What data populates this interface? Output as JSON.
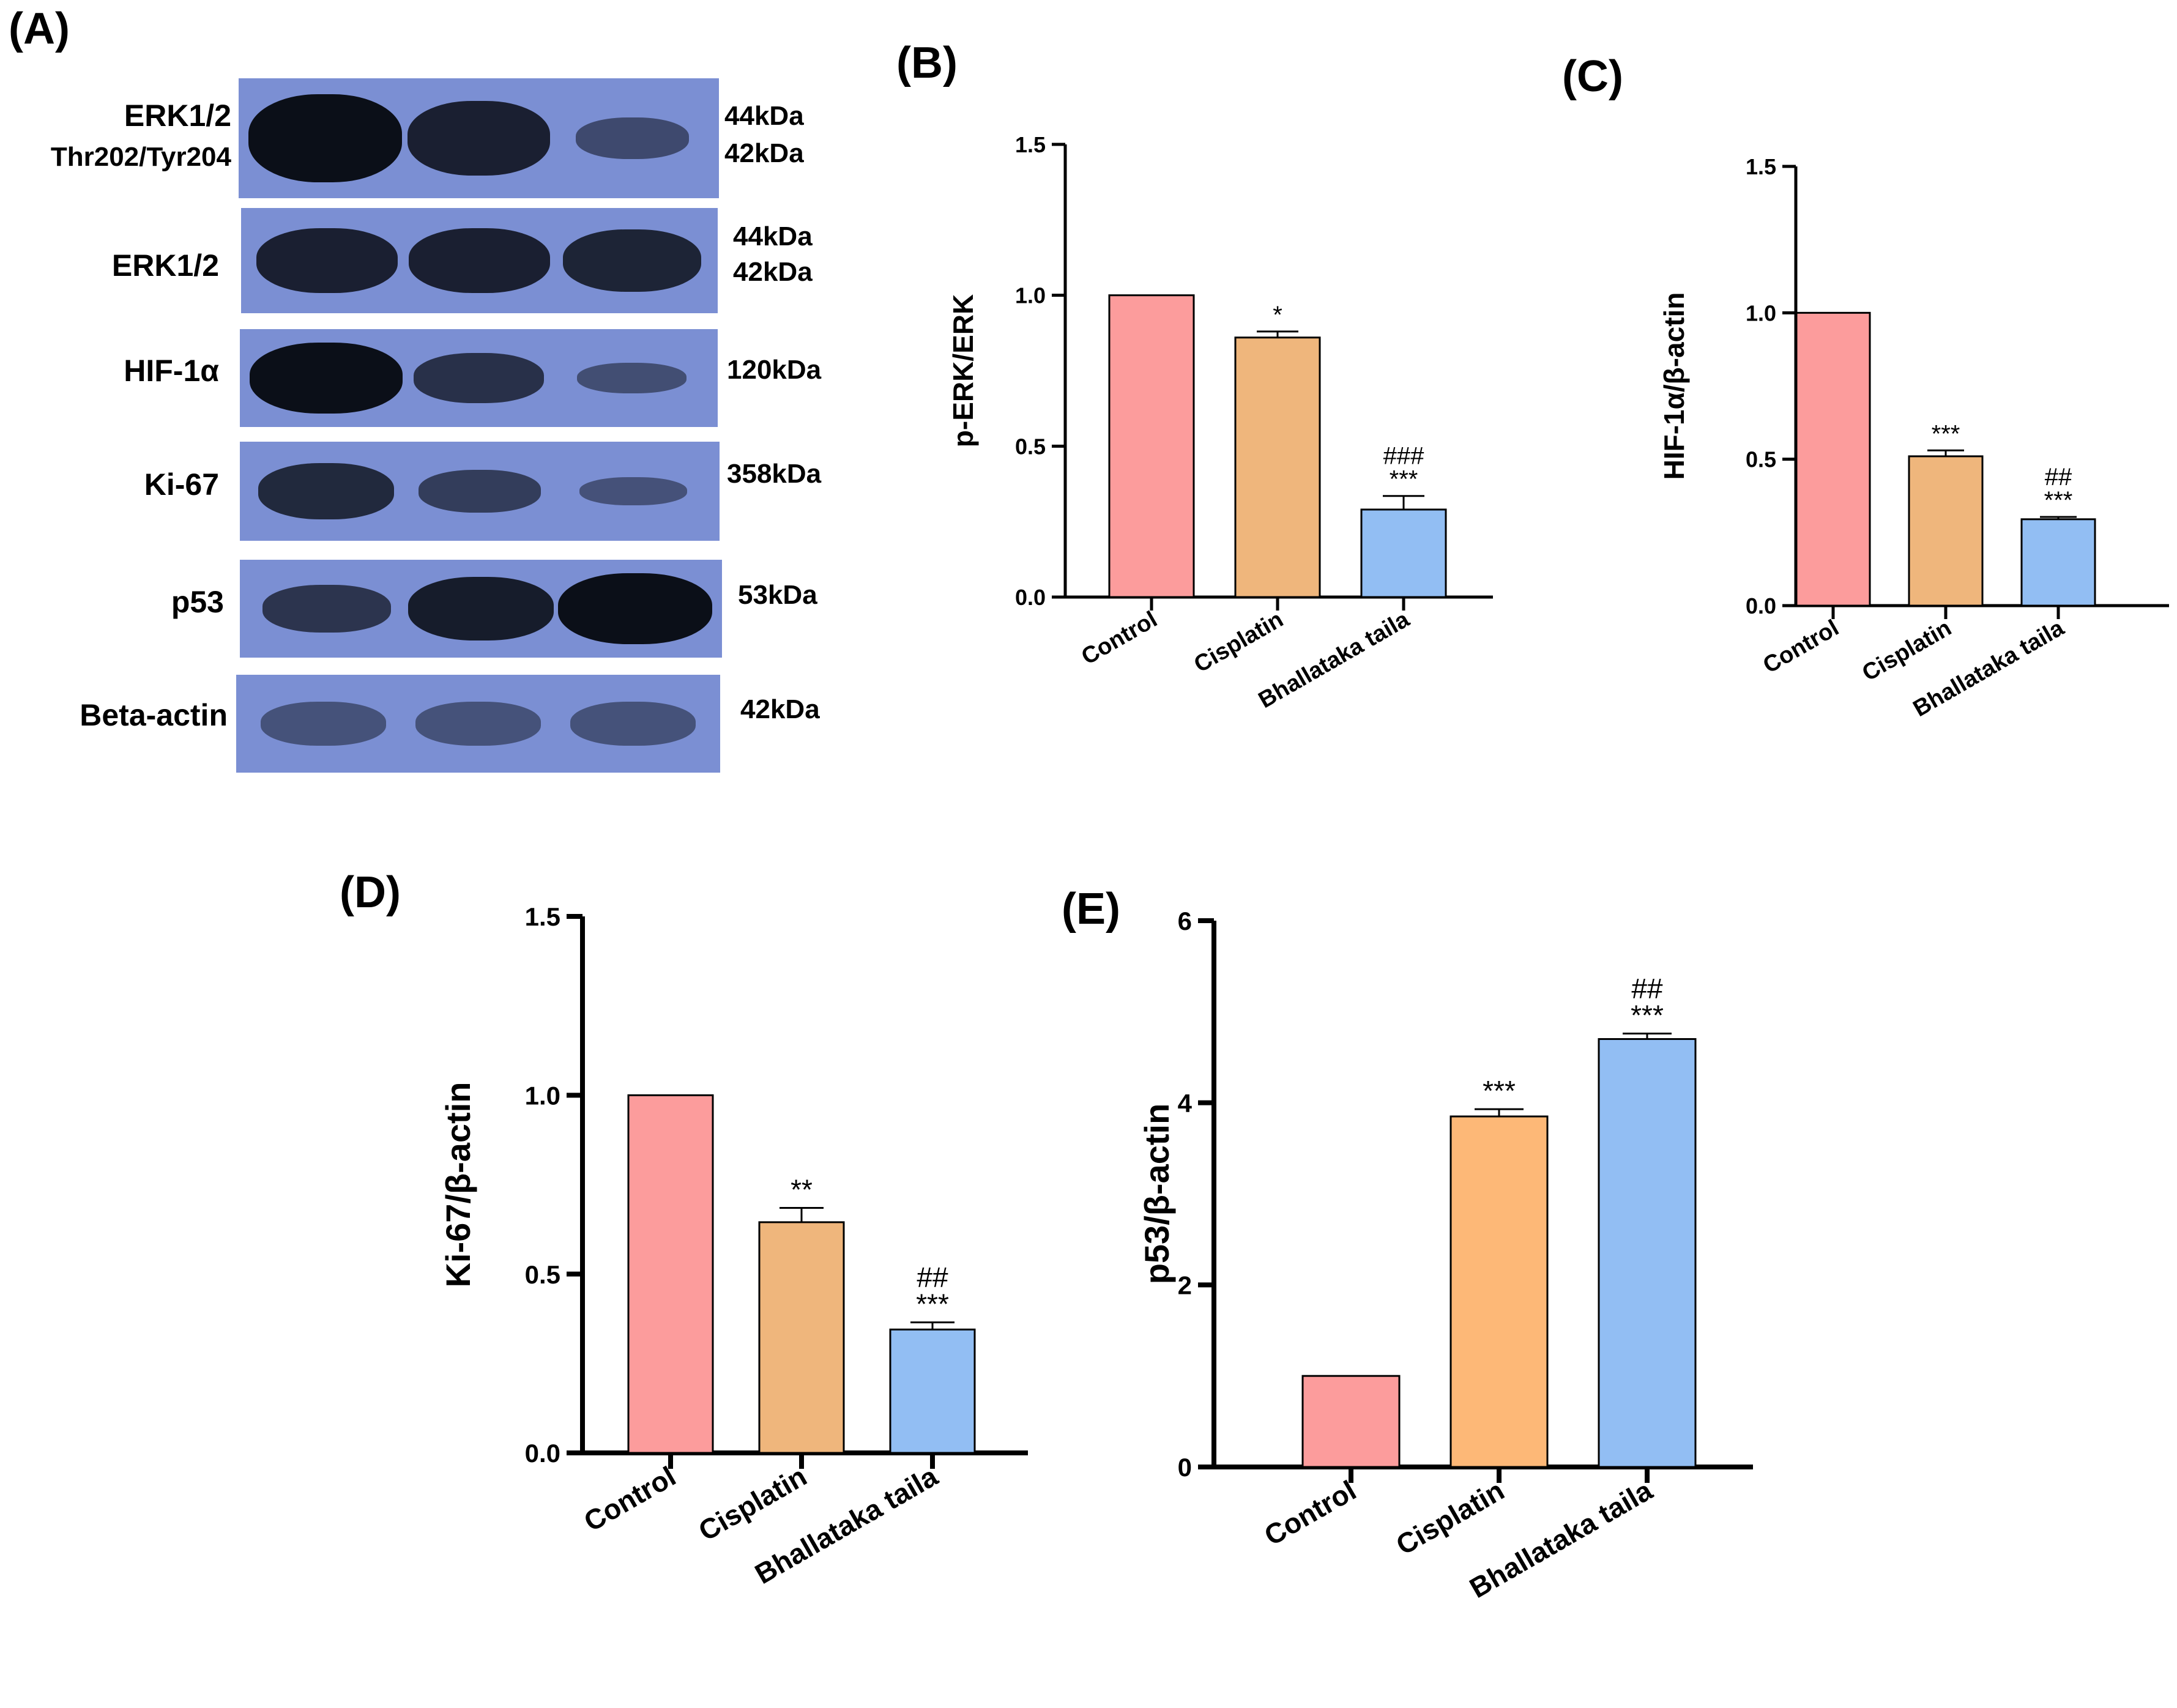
{
  "panel_letters": {
    "A": "(A)",
    "B": "(B)",
    "C": "(C)",
    "D": "(D)",
    "E": "(E)"
  },
  "blot": {
    "rows": [
      {
        "label": "ERK1/2",
        "label2": "Thr202/Tyr204",
        "kda": [
          "44kDa",
          "42kDa"
        ],
        "intensity": [
          1.0,
          0.8,
          0.3
        ]
      },
      {
        "label": "ERK1/2",
        "kda": [
          "44kDa",
          "42kDa"
        ],
        "intensity": [
          0.8,
          0.8,
          0.75
        ]
      },
      {
        "label": "HIF-1α",
        "kda": [
          "120kDa"
        ],
        "intensity": [
          1.0,
          0.6,
          0.25
        ]
      },
      {
        "label": "Ki-67",
        "kda": [
          "358kDa"
        ],
        "intensity": [
          0.7,
          0.45,
          0.2
        ]
      },
      {
        "label": "p53",
        "kda": [
          "53kDa"
        ],
        "intensity": [
          0.55,
          0.85,
          1.0
        ]
      },
      {
        "label": "Beta-actin",
        "kda": [
          "42kDa"
        ],
        "intensity": [
          0.5,
          0.5,
          0.5
        ]
      }
    ]
  },
  "chart_data": [
    {
      "type": "bar",
      "panel": "B",
      "categories": [
        "Control",
        "Cisplatin",
        "Bhallataka taila"
      ],
      "values": [
        1.0,
        0.86,
        0.29
      ],
      "errors": [
        0,
        0.02,
        0.045
      ],
      "annotations": [
        [],
        [
          "*"
        ],
        [
          "###",
          "***"
        ]
      ],
      "ylabel": "p-ERK/ERK",
      "ylim": [
        0,
        1.5
      ],
      "yticks": [
        "0.0",
        "0.5",
        "1.0",
        "1.5"
      ],
      "colors": [
        "#fc9c9c",
        "#efb67c",
        "#92bef3"
      ]
    },
    {
      "type": "bar",
      "panel": "C",
      "categories": [
        "Control",
        "Cisplatin",
        "Bhallataka taila"
      ],
      "values": [
        1.0,
        0.51,
        0.295
      ],
      "errors": [
        0,
        0.02,
        0.008
      ],
      "annotations": [
        [],
        [
          "***"
        ],
        [
          "##",
          "***"
        ]
      ],
      "ylabel": "HIF-1α/β-actin",
      "ylim": [
        0,
        1.5
      ],
      "yticks": [
        "0.0",
        "0.5",
        "1.0",
        "1.5"
      ],
      "colors": [
        "#fc9c9c",
        "#efb67c",
        "#92bef3"
      ]
    },
    {
      "type": "bar",
      "panel": "D",
      "categories": [
        "Control",
        "Cisplatin",
        "Bhallataka taila"
      ],
      "values": [
        1.0,
        0.645,
        0.345
      ],
      "errors": [
        0,
        0.04,
        0.02
      ],
      "annotations": [
        [],
        [
          "**"
        ],
        [
          "##",
          "***"
        ]
      ],
      "ylabel": "Ki-67/β-actin",
      "ylim": [
        0,
        1.5
      ],
      "yticks": [
        "0.0",
        "0.5",
        "1.0",
        "1.5"
      ],
      "colors": [
        "#fc9c9c",
        "#efb67c",
        "#92bef3"
      ]
    },
    {
      "type": "bar",
      "panel": "E",
      "categories": [
        "Control",
        "Cisplatin",
        "Bhallataka taila"
      ],
      "values": [
        1.0,
        3.85,
        4.7
      ],
      "errors": [
        0,
        0.08,
        0.06
      ],
      "annotations": [
        [],
        [
          "***"
        ],
        [
          "##",
          "***"
        ]
      ],
      "ylabel": "p53/β-actin",
      "ylim": [
        0,
        6
      ],
      "yticks": [
        "0",
        "2",
        "4",
        "6"
      ],
      "colors": [
        "#fc9c9c",
        "#fdb877",
        "#92bef3"
      ]
    }
  ]
}
